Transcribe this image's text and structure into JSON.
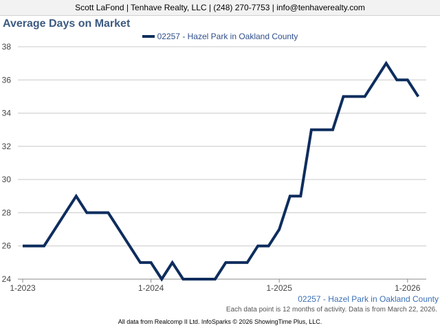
{
  "header": {
    "text": "Scott LaFond | Tenhave Realty, LLC | (248) 270-7753 | info@tenhaverealty.com"
  },
  "title": "Average Days on Market",
  "legend": {
    "label": "02257 - Hazel Park in Oakland County"
  },
  "series_label": "02257 - Hazel Park in Oakland County",
  "note": "Each data point is 12 months of activity. Data is from March 22, 2026.",
  "footer": "All data from Realcomp II Ltd. InfoSparks © 2026 ShowingTime Plus, LLC.",
  "colors": {
    "line": "#0e2d5e",
    "grid": "#c8c8c8",
    "title": "#3d5a80"
  },
  "chart_data": {
    "type": "line",
    "title": "Average Days on Market",
    "xlabel": "",
    "ylabel": "",
    "ylim": [
      24,
      38
    ],
    "yticks": [
      24,
      26,
      28,
      30,
      32,
      34,
      36,
      38
    ],
    "xticks": [
      "1-2023",
      "1-2024",
      "1-2025",
      "1-2026"
    ],
    "grid": true,
    "legend_position": "top-center",
    "series": [
      {
        "name": "02257 - Hazel Park in Oakland County",
        "x": [
          "2023-01",
          "2023-02",
          "2023-03",
          "2023-04",
          "2023-05",
          "2023-06",
          "2023-07",
          "2023-08",
          "2023-09",
          "2023-10",
          "2023-11",
          "2023-12",
          "2024-01",
          "2024-02",
          "2024-03",
          "2024-04",
          "2024-05",
          "2024-06",
          "2024-07",
          "2024-08",
          "2024-09",
          "2024-10",
          "2024-11",
          "2024-12",
          "2025-01",
          "2025-02",
          "2025-03",
          "2025-04",
          "2025-05",
          "2025-06",
          "2025-07",
          "2025-08",
          "2025-09",
          "2025-10",
          "2025-11",
          "2025-12",
          "2026-01",
          "2026-02"
        ],
        "values": [
          26,
          26,
          26,
          27,
          28,
          29,
          28,
          28,
          28,
          27,
          26,
          25,
          25,
          24,
          25,
          24,
          24,
          24,
          24,
          25,
          25,
          25,
          26,
          26,
          27,
          29,
          29,
          33,
          33,
          33,
          35,
          35,
          35,
          36,
          37,
          36,
          36,
          35
        ]
      }
    ]
  }
}
